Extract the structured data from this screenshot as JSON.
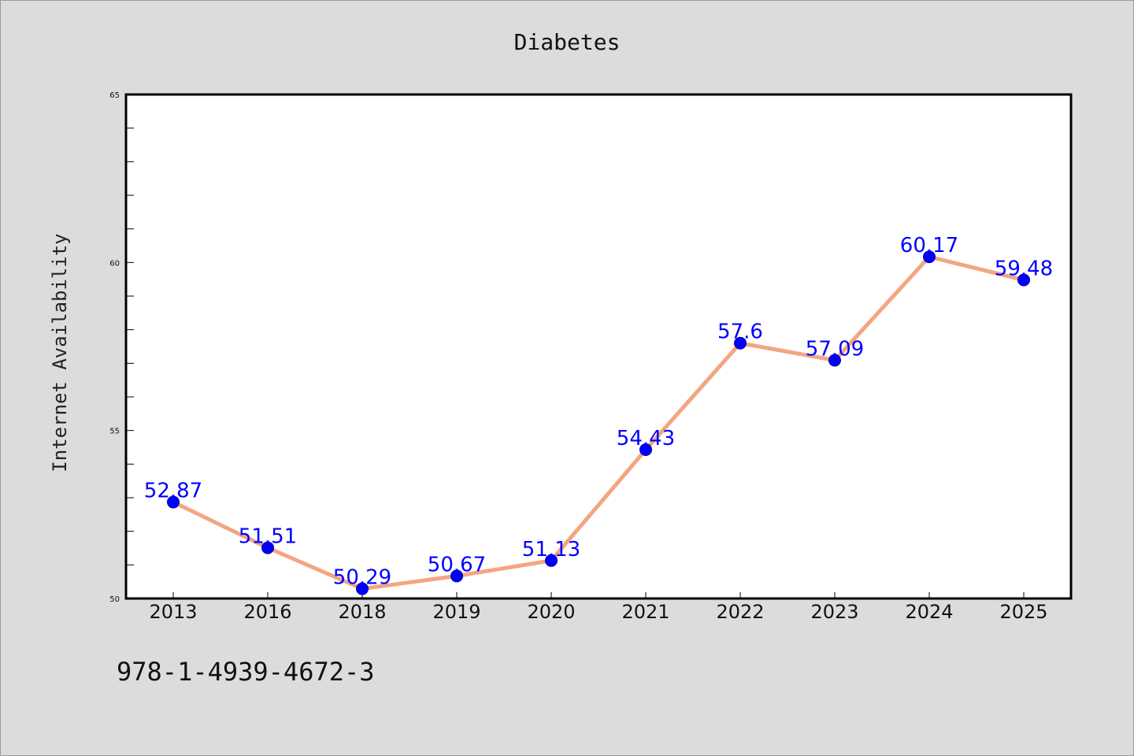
{
  "chart_data": {
    "type": "line",
    "title": "Diabetes",
    "xlabel": "",
    "ylabel": "Internet Availability",
    "ylim": [
      50,
      65
    ],
    "yticks": [
      50,
      55,
      60,
      65
    ],
    "categories": [
      "2013",
      "2016",
      "2018",
      "2019",
      "2020",
      "2021",
      "2022",
      "2023",
      "2024",
      "2025"
    ],
    "series": [
      {
        "values": [
          52.87,
          51.51,
          50.29,
          50.67,
          51.13,
          54.43,
          57.6,
          57.09,
          60.17,
          59.48
        ],
        "labels": [
          "52.87",
          "51.51",
          "50.29",
          "50.67",
          "51.13",
          "54.43",
          "57.6",
          "57.09",
          "60.17",
          "59.48"
        ],
        "line_color": "#f4a582",
        "marker_color": "#0000ff"
      }
    ],
    "grid": false,
    "legend": "none"
  },
  "footer": {
    "isbn": "978-1-4939-4672-3"
  },
  "colors": {
    "background": "#dcdcdc",
    "plot_background": "#ffffff",
    "line": "#f4a582",
    "marker": "#0000ff",
    "data_label": "#0000ff"
  }
}
